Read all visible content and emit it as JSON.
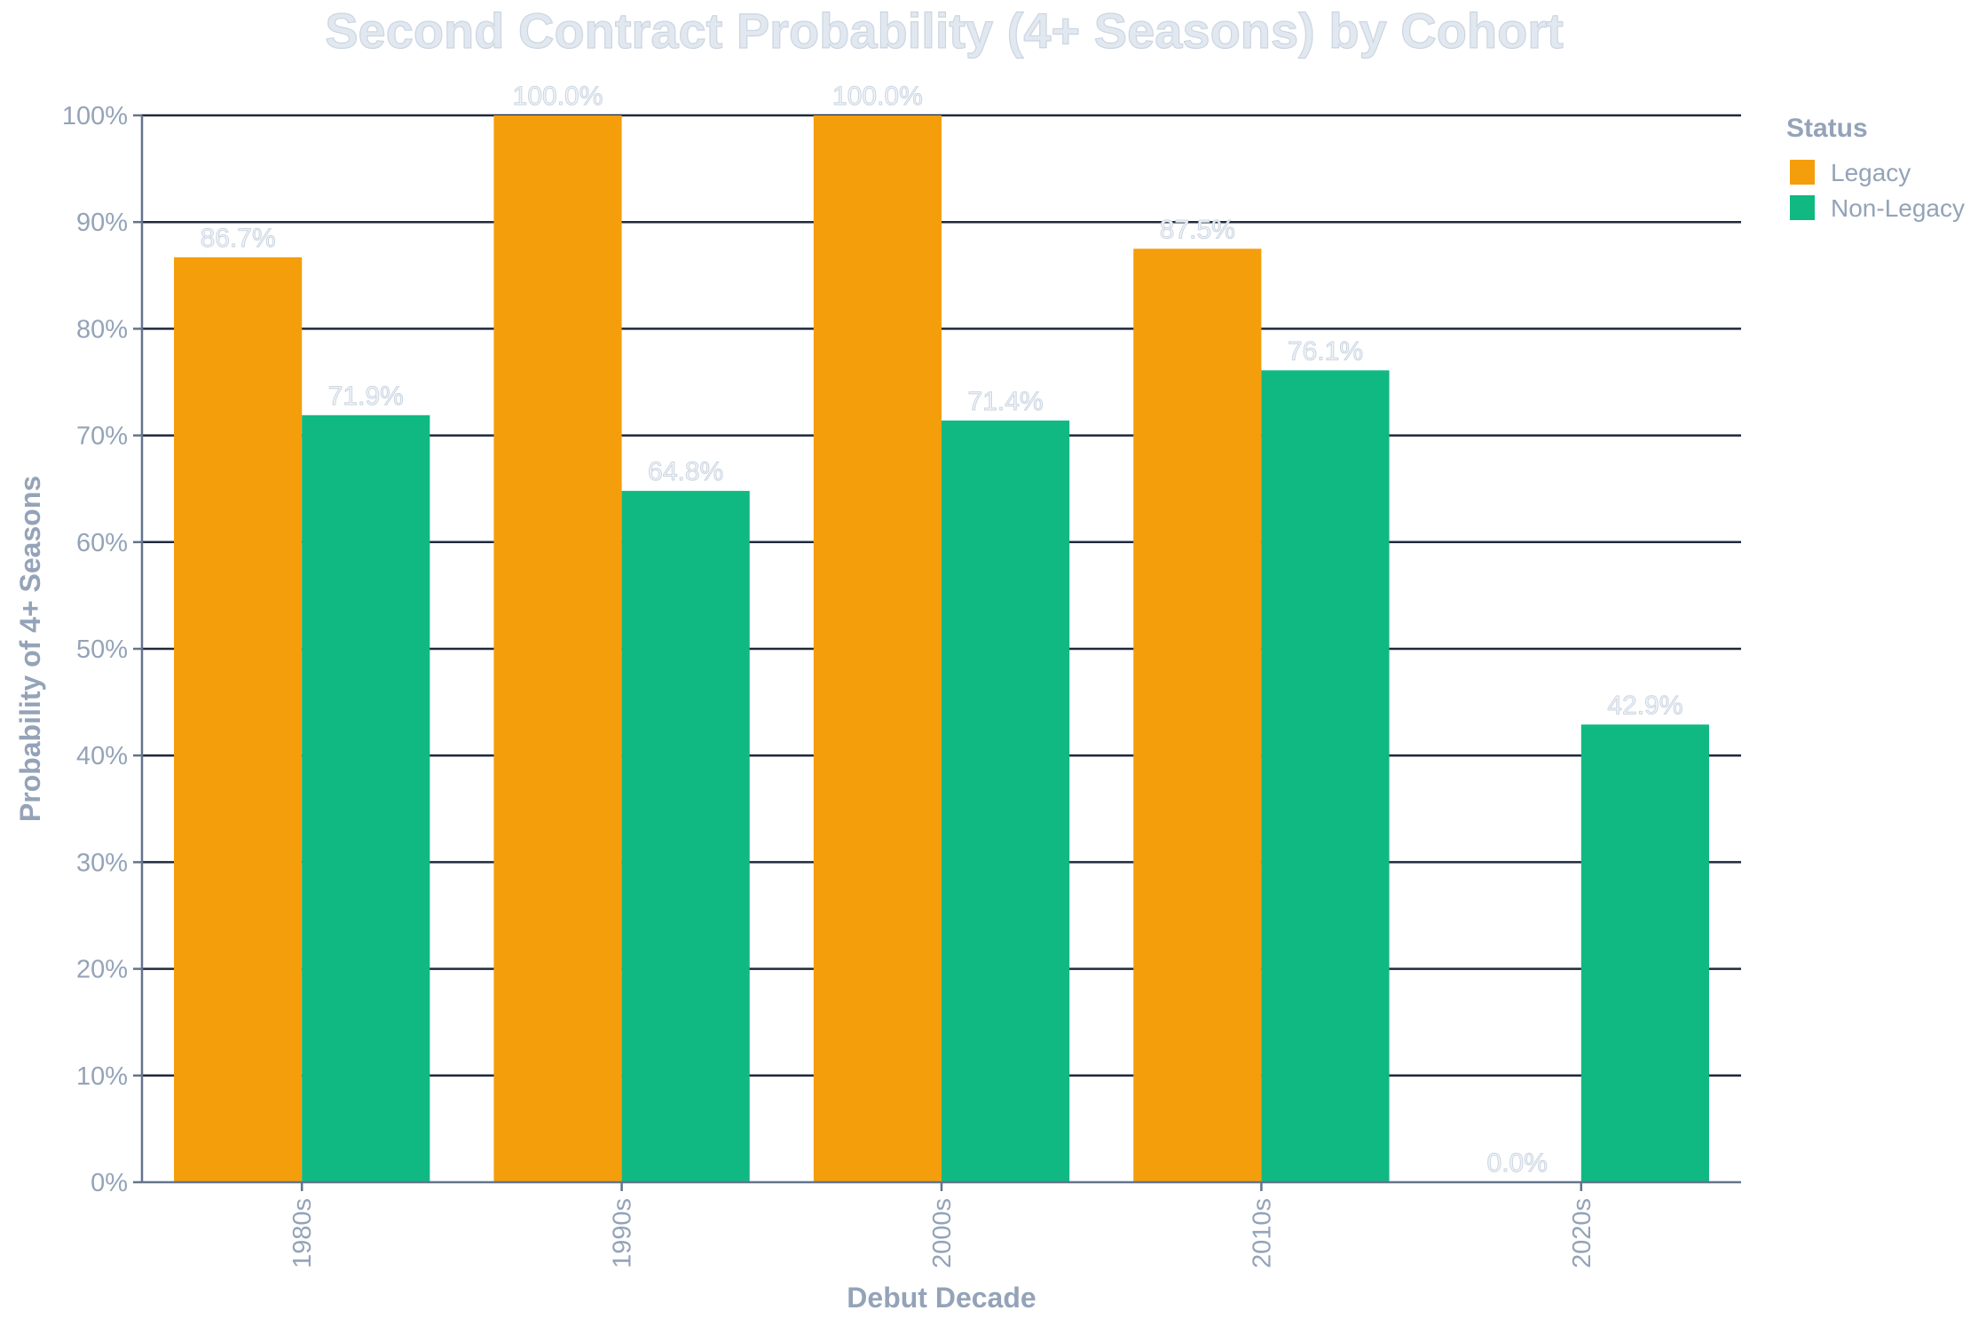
{
  "chart_data": {
    "type": "bar",
    "title": "Second Contract Probability (4+ Seasons) by Cohort",
    "xlabel": "Debut Decade",
    "ylabel": "Probability of 4+ Seasons",
    "ylim": [
      0,
      100
    ],
    "yticks": [
      0,
      10,
      20,
      30,
      40,
      50,
      60,
      70,
      80,
      90,
      100
    ],
    "ytick_labels": [
      "0%",
      "10%",
      "20%",
      "30%",
      "40%",
      "50%",
      "60%",
      "70%",
      "80%",
      "90%",
      "100%"
    ],
    "categories": [
      "1980s",
      "1990s",
      "2000s",
      "2010s",
      "2020s"
    ],
    "legend_title": "Status",
    "legend_position": "top-right",
    "grid": true,
    "series": [
      {
        "name": "Legacy",
        "color": "#f59e0b",
        "values": [
          86.7,
          100.0,
          100.0,
          87.5,
          0.0
        ],
        "labels": [
          "86.7%",
          "100.0%",
          "100.0%",
          "87.5%",
          "0.0%"
        ]
      },
      {
        "name": "Non-Legacy",
        "color": "#10b981",
        "values": [
          71.9,
          64.8,
          71.4,
          76.1,
          42.9
        ],
        "labels": [
          "71.9%",
          "64.8%",
          "71.4%",
          "76.1%",
          "42.9%"
        ]
      }
    ]
  }
}
